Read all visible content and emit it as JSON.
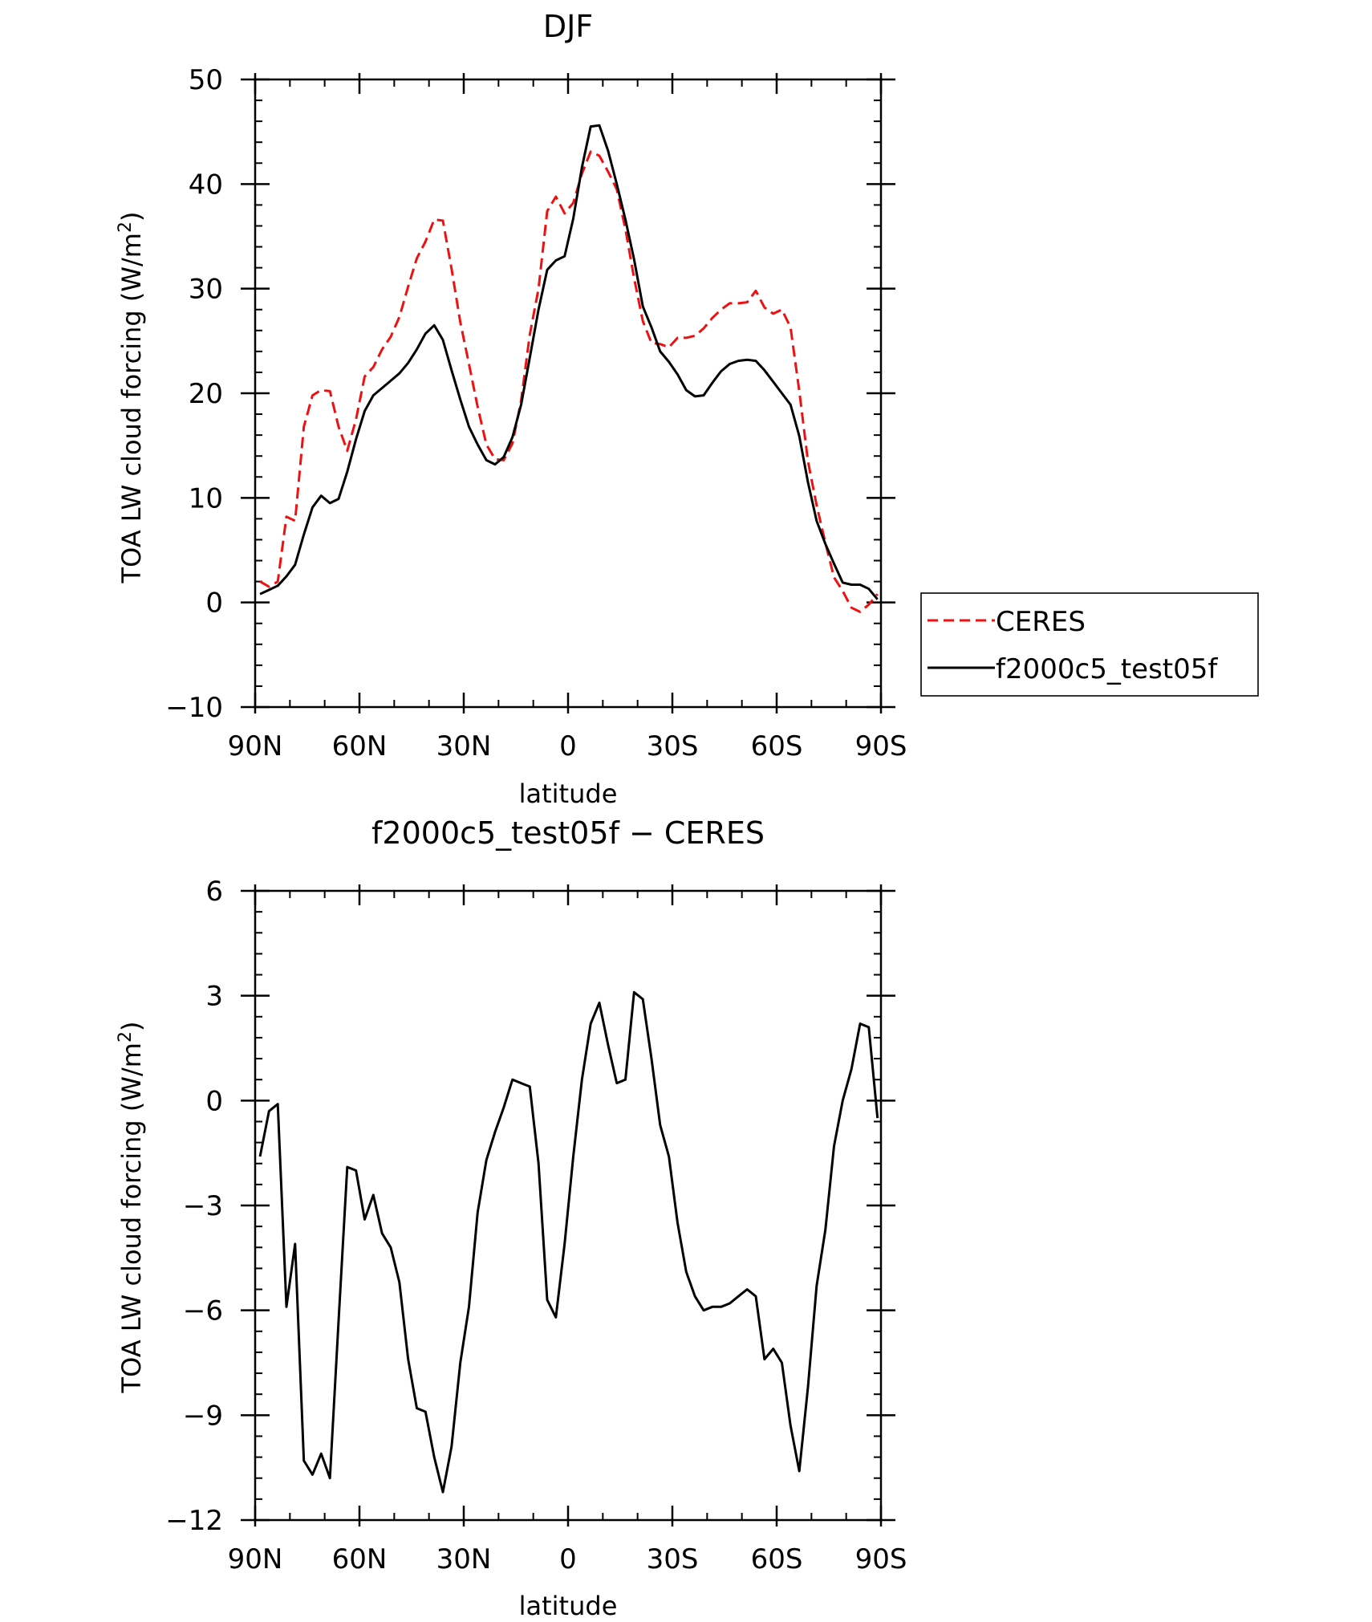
{
  "chart_data": [
    {
      "type": "line",
      "title": "DJF",
      "xlabel": "latitude",
      "ylabel": "TOA LW cloud forcing (W/m",
      "ylabel_sup": "2",
      "ylabel_end": ")",
      "xlim": [
        90,
        -90
      ],
      "ylim": [
        -10,
        50
      ],
      "yticks": [
        -10,
        0,
        10,
        20,
        30,
        40,
        50
      ],
      "ytick_labels": [
        "−10",
        "0",
        "10",
        "20",
        "30",
        "40",
        "50"
      ],
      "xticks": [
        90,
        60,
        30,
        0,
        -30,
        -60,
        -90
      ],
      "xtick_labels": [
        "90N",
        "60N",
        "30N",
        "0",
        "30S",
        "60S",
        "90S"
      ],
      "grid": false,
      "legend_position": "right",
      "x": [
        88.6,
        86,
        83.5,
        81,
        78.5,
        76,
        73.5,
        71,
        68.5,
        66,
        63.5,
        61,
        58.5,
        56,
        53.5,
        51,
        48.5,
        46,
        43.5,
        41,
        38.5,
        36,
        33.5,
        31,
        28.5,
        26,
        23.5,
        21,
        18.5,
        16,
        13.5,
        11,
        8.5,
        6,
        3.5,
        1,
        -1.5,
        -4,
        -6.5,
        -9,
        -11.5,
        -14,
        -16.5,
        -19,
        -21.5,
        -24,
        -26.5,
        -29,
        -31.5,
        -34,
        -36.5,
        -39,
        -41.5,
        -44,
        -46.5,
        -49,
        -51.5,
        -54,
        -56.5,
        -59,
        -61.5,
        -64,
        -66.5,
        -69,
        -71.5,
        -74,
        -76.5,
        -79,
        -81.5,
        -84,
        -86.5,
        -89
      ],
      "series": [
        {
          "name": "CERES",
          "color": "#ee1111",
          "dash": "dashed",
          "values": [
            2.0,
            1.5,
            2.0,
            8.2,
            7.8,
            16.8,
            19.8,
            20.3,
            20.2,
            16.8,
            14.5,
            17.5,
            21.6,
            22.5,
            24.2,
            25.4,
            27.3,
            30.2,
            32.9,
            34.5,
            36.6,
            36.5,
            31.9,
            26.8,
            22.8,
            18.7,
            15.1,
            13.7,
            13.6,
            15.2,
            19.3,
            25.6,
            30.0,
            37.4,
            38.8,
            37.2,
            38.2,
            41.0,
            43.1,
            42.7,
            41.2,
            39.5,
            35.7,
            31.0,
            26.9,
            24.8,
            24.7,
            24.4,
            25.3,
            25.3,
            25.5,
            26.2,
            27.2,
            28.0,
            28.6,
            28.6,
            28.7,
            29.8,
            28.2,
            27.6,
            28.0,
            26.3,
            20.2,
            13.5,
            9.3,
            5.7,
            2.4,
            1.1,
            -0.5,
            -0.9,
            -0.2,
            0.8
          ]
        },
        {
          "name": "f2000c5_test05f",
          "color": "#000000",
          "dash": "solid",
          "values": [
            0.8,
            1.2,
            1.6,
            2.5,
            3.6,
            6.5,
            9.1,
            10.2,
            9.5,
            9.9,
            12.5,
            15.6,
            18.3,
            19.8,
            20.5,
            21.2,
            21.9,
            22.9,
            24.2,
            25.7,
            26.5,
            25.1,
            22.2,
            19.4,
            16.8,
            15.1,
            13.6,
            13.2,
            13.9,
            15.8,
            18.9,
            23.4,
            28.0,
            31.8,
            32.7,
            33.1,
            36.7,
            41.6,
            45.5,
            45.6,
            43.2,
            40.0,
            36.6,
            32.8,
            28.3,
            26.3,
            24.0,
            23.0,
            21.8,
            20.3,
            19.7,
            19.8,
            21.0,
            22.1,
            22.8,
            23.1,
            23.2,
            23.1,
            22.2,
            21.1,
            20.0,
            18.9,
            15.9,
            11.5,
            7.8,
            5.6,
            3.7,
            1.9,
            1.7,
            1.7,
            1.3,
            0.3
          ]
        }
      ]
    },
    {
      "type": "line",
      "title": "f2000c5_test05f − CERES",
      "xlabel": "latitude",
      "ylabel": "TOA LW cloud forcing (W/m",
      "ylabel_sup": "2",
      "ylabel_end": ")",
      "xlim": [
        90,
        -90
      ],
      "ylim": [
        -12,
        6
      ],
      "yticks": [
        -12,
        -9,
        -6,
        -3,
        0,
        3,
        6
      ],
      "ytick_labels": [
        "−12",
        "−9",
        "−6",
        "−3",
        "0",
        "3",
        "6"
      ],
      "xticks": [
        90,
        60,
        30,
        0,
        -30,
        -60,
        -90
      ],
      "xtick_labels": [
        "90N",
        "60N",
        "30N",
        "0",
        "30S",
        "60S",
        "90S"
      ],
      "grid": false,
      "x": [
        88.6,
        86,
        83.5,
        81,
        78.5,
        76,
        73.5,
        71,
        68.5,
        66,
        63.5,
        61,
        58.5,
        56,
        53.5,
        51,
        48.5,
        46,
        43.5,
        41,
        38.5,
        36,
        33.5,
        31,
        28.5,
        26,
        23.5,
        21,
        18.5,
        16,
        13.5,
        11,
        8.5,
        6,
        3.5,
        1,
        -1.5,
        -4,
        -6.5,
        -9,
        -11.5,
        -14,
        -16.5,
        -19,
        -21.5,
        -24,
        -26.5,
        -29,
        -31.5,
        -34,
        -36.5,
        -39,
        -41.5,
        -44,
        -46.5,
        -49,
        -51.5,
        -54,
        -56.5,
        -59,
        -61.5,
        -64,
        -66.5,
        -69,
        -71.5,
        -74,
        -76.5,
        -79,
        -81.5,
        -84,
        -86.5,
        -89
      ],
      "series": [
        {
          "name": "",
          "color": "#000000",
          "dash": "solid",
          "values": [
            -1.6,
            -0.3,
            -0.1,
            -5.9,
            -4.1,
            -10.3,
            -10.7,
            -10.1,
            -10.8,
            -6.3,
            -1.9,
            -2.0,
            -3.4,
            -2.7,
            -3.8,
            -4.2,
            -5.2,
            -7.4,
            -8.8,
            -8.9,
            -10.2,
            -11.2,
            -9.9,
            -7.5,
            -5.9,
            -3.2,
            -1.7,
            -0.9,
            -0.2,
            0.6,
            0.5,
            0.4,
            -1.8,
            -5.7,
            -6.2,
            -4.1,
            -1.6,
            0.6,
            2.2,
            2.8,
            1.6,
            0.5,
            0.6,
            3.1,
            2.9,
            1.2,
            -0.7,
            -1.6,
            -3.5,
            -4.9,
            -5.6,
            -6.0,
            -5.9,
            -5.9,
            -5.8,
            -5.6,
            -5.4,
            -5.6,
            -7.4,
            -7.1,
            -7.5,
            -9.3,
            -10.6,
            -8.2,
            -5.3,
            -3.7,
            -1.3,
            0.0,
            0.9,
            2.2,
            2.1,
            -0.5
          ]
        }
      ]
    }
  ]
}
